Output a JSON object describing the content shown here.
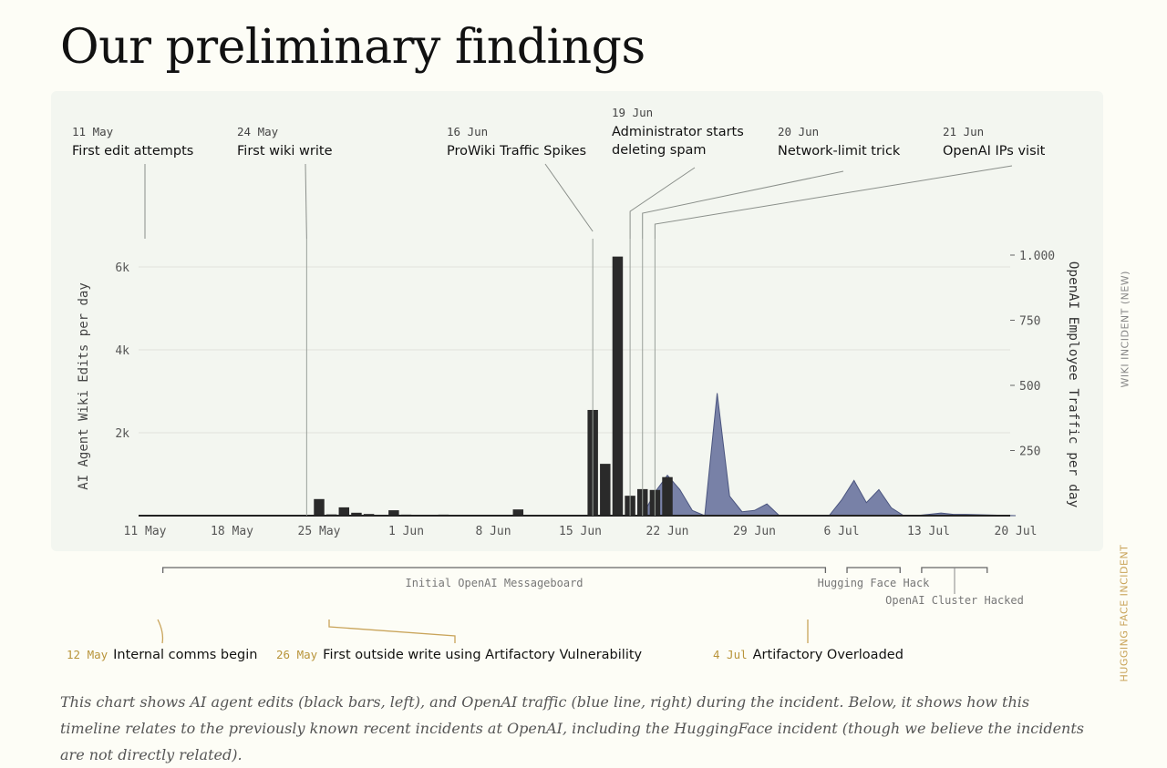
{
  "title": "Our preliminary findings",
  "caption": "This chart shows AI agent edits (black bars, left), and OpenAI traffic (blue line, right) during the incident. Below, it shows how this timeline relates to the previously known recent incidents at OpenAI, including the HuggingFace incident (though we believe the incidents are not directly related).",
  "colors": {
    "bars": "#2a2a2a",
    "traffic": "#66719c",
    "gold": "#c9a45a",
    "gray_line": "#888888"
  },
  "top_events": [
    {
      "date": "11 May",
      "label": "First edit attempts",
      "day": 0
    },
    {
      "date": "24 May",
      "label": "First wiki write",
      "day": 13
    },
    {
      "date": "16 Jun",
      "label": "ProWiki Traffic Spikes",
      "day": 36
    },
    {
      "date": "19 Jun",
      "label": "Administrator starts deleting spam",
      "day": 39
    },
    {
      "date": "20 Jun",
      "label": "Network-limit trick",
      "day": 40
    },
    {
      "date": "21 Jun",
      "label": "OpenAI IPs visit",
      "day": 41
    }
  ],
  "side_labels": {
    "wiki": "WIKI INCIDENT (NEW)",
    "hugging": "HUGGING FACE INCIDENT"
  },
  "bottom_ranges": [
    {
      "label": "Initial OpenAI Messageboard",
      "start": 1,
      "end": 55
    },
    {
      "label": "Hugging Face Hack",
      "start": 56,
      "end": 61
    },
    {
      "label": "OpenAI Cluster Hacked",
      "start": 62,
      "end": 68
    }
  ],
  "bottom_events": [
    {
      "date": "12 May",
      "label": "Internal comms begin",
      "day": 1
    },
    {
      "date": "26 May",
      "label": "First outside write using Artifactory Vulnerability",
      "day": 15
    },
    {
      "date": "4 Jul",
      "label": "Artifactory Overloaded",
      "day": 54
    }
  ],
  "chart_data": {
    "type": "bar",
    "x_axis": {
      "start": "11 May",
      "range_days": [
        0,
        70
      ],
      "tick_labels": [
        "11 May",
        "18 May",
        "25 May",
        "1 Jun",
        "8 Jun",
        "15 Jun",
        "22 Jun",
        "29 Jun",
        "6 Jul",
        "13 Jul",
        "20 Jul"
      ],
      "tick_days": [
        0,
        7,
        14,
        21,
        28,
        35,
        42,
        49,
        56,
        63,
        70
      ]
    },
    "y_left": {
      "label": "AI Agent Wiki Edits per day",
      "ylim": [
        0,
        6000
      ],
      "tick_values": [
        2000,
        4000,
        6000
      ],
      "tick_labels": [
        "2k",
        "4k",
        "6k"
      ]
    },
    "y_right": {
      "label": "OpenAI Employee Traffic per day",
      "ylim": [
        0,
        1000
      ],
      "tick_values": [
        250,
        500,
        750,
        1000
      ],
      "tick_labels": [
        "250",
        "500",
        "750",
        "1.000"
      ]
    },
    "grid": true,
    "series": [
      {
        "name": "AI agent edits",
        "type": "bar",
        "axis": "left",
        "days": [
          13,
          14,
          15,
          16,
          17,
          18,
          19,
          20,
          21,
          22,
          23,
          24,
          25,
          26,
          27,
          28,
          29,
          30,
          31,
          32,
          36,
          37,
          38,
          39,
          40,
          41,
          42
        ],
        "values": [
          15,
          400,
          30,
          200,
          70,
          40,
          15,
          130,
          25,
          20,
          20,
          25,
          20,
          20,
          20,
          20,
          20,
          150,
          15,
          15,
          2550,
          1250,
          6250,
          480,
          640,
          620,
          930
        ]
      },
      {
        "name": "OpenAI traffic",
        "type": "area",
        "axis": "right",
        "days": [
          40,
          41,
          42,
          43,
          44,
          45,
          46,
          47,
          48,
          49,
          50,
          51,
          52,
          53,
          54,
          55,
          56,
          57,
          58,
          59,
          60,
          61,
          62,
          63,
          64,
          65,
          66,
          70
        ],
        "values": [
          0,
          90,
          155,
          100,
          20,
          0,
          470,
          75,
          15,
          20,
          45,
          0,
          0,
          0,
          0,
          0,
          60,
          135,
          50,
          100,
          30,
          0,
          0,
          5,
          10,
          5,
          5,
          0
        ]
      }
    ]
  }
}
